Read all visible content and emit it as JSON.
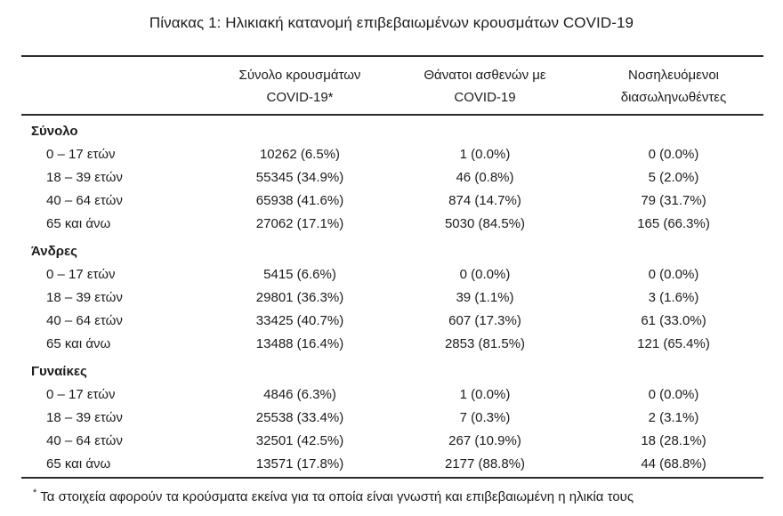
{
  "title": "Πίνακας 1: Ηλικιακή κατανομή επιβεβαιωμένων κρουσμάτων COVID-19",
  "table": {
    "columns": [
      {
        "line1": "Σύνολο κρουσμάτων",
        "line2": "COVID-19*"
      },
      {
        "line1": "Θάνατοι ασθενών με",
        "line2": "COVID-19"
      },
      {
        "line1": "Νοσηλευόμενοι",
        "line2": "διασωληνωθέντες"
      }
    ],
    "sections": [
      {
        "label": "Σύνολο",
        "rows": [
          {
            "label": "0 – 17 ετών",
            "cases": "10262 (6.5%)",
            "deaths": "1 (0.0%)",
            "intubated": "0 (0.0%)"
          },
          {
            "label": "18 – 39 ετών",
            "cases": "55345 (34.9%)",
            "deaths": "46 (0.8%)",
            "intubated": "5 (2.0%)"
          },
          {
            "label": "40 – 64 ετών",
            "cases": "65938 (41.6%)",
            "deaths": "874 (14.7%)",
            "intubated": "79 (31.7%)"
          },
          {
            "label": "65 και άνω",
            "cases": "27062 (17.1%)",
            "deaths": "5030 (84.5%)",
            "intubated": "165 (66.3%)"
          }
        ]
      },
      {
        "label": "Άνδρες",
        "rows": [
          {
            "label": "0 – 17 ετών",
            "cases": "5415 (6.6%)",
            "deaths": "0 (0.0%)",
            "intubated": "0 (0.0%)"
          },
          {
            "label": "18 – 39 ετών",
            "cases": "29801 (36.3%)",
            "deaths": "39 (1.1%)",
            "intubated": "3 (1.6%)"
          },
          {
            "label": "40 – 64 ετών",
            "cases": "33425 (40.7%)",
            "deaths": "607 (17.3%)",
            "intubated": "61 (33.0%)"
          },
          {
            "label": "65 και άνω",
            "cases": "13488 (16.4%)",
            "deaths": "2853 (81.5%)",
            "intubated": "121 (65.4%)"
          }
        ]
      },
      {
        "label": "Γυναίκες",
        "rows": [
          {
            "label": "0 – 17 ετών",
            "cases": "4846 (6.3%)",
            "deaths": "1 (0.0%)",
            "intubated": "0 (0.0%)"
          },
          {
            "label": "18 – 39 ετών",
            "cases": "25538 (33.4%)",
            "deaths": "7 (0.3%)",
            "intubated": "2 (3.1%)"
          },
          {
            "label": "40 – 64 ετών",
            "cases": "32501 (42.5%)",
            "deaths": "267 (10.9%)",
            "intubated": "18 (28.1%)"
          },
          {
            "label": "65 και άνω",
            "cases": "13571 (17.8%)",
            "deaths": "2177 (88.8%)",
            "intubated": "44 (68.8%)"
          }
        ]
      }
    ],
    "footnote_marker": "*",
    "footnote": "Τα στοιχεία αφορούν τα κρούσματα εκείνα για τα οποία είναι γνωστή και επιβεβαιωμένη η ηλικία τους"
  },
  "colors": {
    "text": "#1c1c1c",
    "rule": "#2b2b2b",
    "background": "#ffffff"
  }
}
